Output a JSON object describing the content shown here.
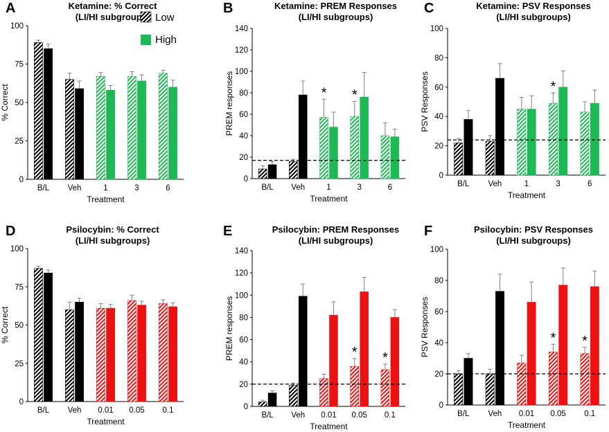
{
  "colors": {
    "ctrl": "#000000",
    "ketamine": "#1db954",
    "psilocybin": "#ee1111",
    "err": "#808080"
  },
  "legend": {
    "low": "Low",
    "high": "High"
  },
  "chart_data": [
    {
      "panel": "A",
      "type": "bar",
      "title1": "Ketamine: % Correct",
      "title2": "(LI/HI subgroups)",
      "xlabel": "Treatment",
      "ylabel": "% Correct",
      "ylim": [
        0,
        100
      ],
      "yticks": [
        0,
        25,
        50,
        75,
        100
      ],
      "drug": "ketamine",
      "categories": [
        "B/L",
        "Veh",
        "1",
        "3",
        "6"
      ],
      "series": [
        {
          "name": "Low",
          "values": [
            89,
            65,
            67,
            67,
            69
          ],
          "err": [
            1.5,
            4,
            2.5,
            3,
            2
          ]
        },
        {
          "name": "High",
          "values": [
            85,
            59,
            58,
            64,
            60
          ],
          "err": [
            3,
            5,
            3,
            4,
            4.5
          ]
        }
      ],
      "stars": [],
      "baseline": null,
      "legend": true
    },
    {
      "panel": "B",
      "type": "bar",
      "title1": "Ketamine: PREM Responses",
      "title2": "(LI/HI subgroups)",
      "xlabel": "Treatment",
      "ylabel": "PREM responses",
      "ylim": [
        0,
        140
      ],
      "yticks": [
        0,
        20,
        40,
        60,
        80,
        100,
        120,
        140
      ],
      "drug": "ketamine",
      "categories": [
        "B/L",
        "Veh",
        "1",
        "3",
        "6"
      ],
      "series": [
        {
          "name": "Low",
          "values": [
            9,
            16,
            57,
            58,
            40
          ],
          "err": [
            3,
            2,
            17,
            14,
            12
          ]
        },
        {
          "name": "High",
          "values": [
            13,
            78,
            48,
            76,
            39
          ],
          "err": [
            3,
            13,
            14,
            23,
            7
          ]
        }
      ],
      "stars": [
        2,
        3
      ],
      "baseline": 17,
      "legend": false
    },
    {
      "panel": "C",
      "type": "bar",
      "title1": "Ketamine: PSV Responses",
      "title2": "(LI/HI subgroups)",
      "xlabel": "Treatment",
      "ylabel": "PSV Responses",
      "ylim": [
        0,
        100
      ],
      "yticks": [
        0,
        20,
        40,
        60,
        80,
        100
      ],
      "drug": "ketamine",
      "categories": [
        "B/L",
        "Veh",
        "1",
        "3",
        "6"
      ],
      "series": [
        {
          "name": "Low",
          "values": [
            22,
            23,
            45,
            49,
            43
          ],
          "err": [
            3,
            4,
            8,
            7,
            7
          ]
        },
        {
          "name": "High",
          "values": [
            38,
            66,
            45,
            60,
            49
          ],
          "err": [
            6,
            10,
            9,
            11,
            9
          ]
        }
      ],
      "stars": [
        3
      ],
      "baseline": 24,
      "legend": false
    },
    {
      "panel": "D",
      "type": "bar",
      "title1": "Psilocybin: % Correct",
      "title2": "(LI/HI subgroups)",
      "xlabel": "Treatment",
      "ylabel": "% Correct",
      "ylim": [
        0,
        100
      ],
      "yticks": [
        0,
        25,
        50,
        75,
        100
      ],
      "drug": "psilocybin",
      "categories": [
        "B/L",
        "Veh",
        "0.01",
        "0.05",
        "0.1"
      ],
      "series": [
        {
          "name": "Low",
          "values": [
            87,
            60,
            61,
            66,
            64
          ],
          "err": [
            1.5,
            5,
            3,
            3.5,
            2.5
          ]
        },
        {
          "name": "High",
          "values": [
            84,
            65,
            61,
            63,
            62
          ],
          "err": [
            2,
            2.5,
            2.5,
            2.5,
            2.5
          ]
        }
      ],
      "stars": [],
      "baseline": null,
      "legend": false
    },
    {
      "panel": "E",
      "type": "bar",
      "title1": "Psilocybin: PREM Responses",
      "title2": "(LI/HI subgroups)",
      "xlabel": "Treatment",
      "ylabel": "PREM responses",
      "ylim": [
        0,
        140
      ],
      "yticks": [
        0,
        20,
        40,
        60,
        80,
        100,
        120,
        140
      ],
      "drug": "psilocybin",
      "categories": [
        "B/L",
        "Veh",
        "0.01",
        "0.05",
        "0.1"
      ],
      "series": [
        {
          "name": "Low",
          "values": [
            4,
            19,
            25,
            36,
            33
          ],
          "err": [
            1.5,
            2,
            4,
            7,
            5
          ]
        },
        {
          "name": "High",
          "values": [
            12,
            99,
            82,
            103,
            80
          ],
          "err": [
            2,
            11,
            12,
            13,
            7
          ]
        }
      ],
      "stars": [
        3,
        4
      ],
      "baseline": 20,
      "legend": false
    },
    {
      "panel": "F",
      "type": "bar",
      "title1": "Psilocybin: PSV Responses",
      "title2": "(LI/HI subgroups)",
      "xlabel": "Treatment",
      "ylabel": "PSV Responses",
      "ylim": [
        0,
        100
      ],
      "yticks": [
        0,
        20,
        40,
        60,
        80,
        100
      ],
      "drug": "psilocybin",
      "categories": [
        "B/L",
        "Veh",
        "0.01",
        "0.05",
        "0.1"
      ],
      "series": [
        {
          "name": "Low",
          "values": [
            20,
            20,
            27,
            34,
            33
          ],
          "err": [
            2,
            3,
            5,
            5,
            4
          ]
        },
        {
          "name": "High",
          "values": [
            30,
            73,
            66,
            77,
            76
          ],
          "err": [
            3,
            11,
            13,
            11,
            10
          ]
        }
      ],
      "stars": [
        3,
        4
      ],
      "baseline": 20,
      "legend": false
    }
  ]
}
